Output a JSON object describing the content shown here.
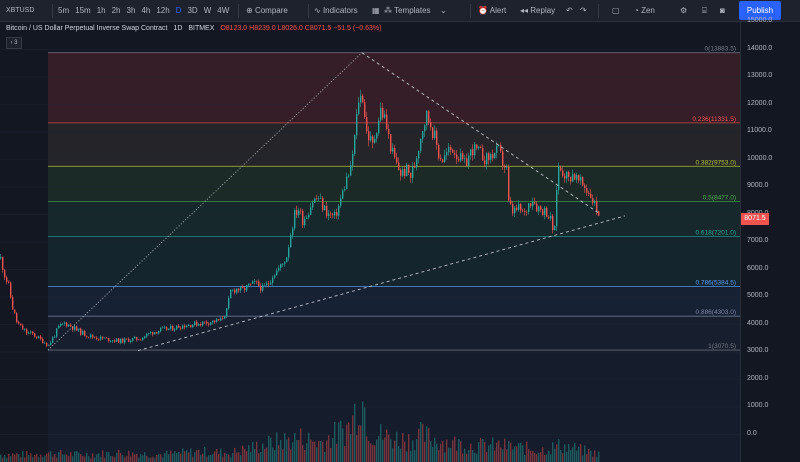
{
  "toolbar": {
    "symbol": "XBTUSD",
    "intervals": [
      "5m",
      "15m",
      "1h",
      "2h",
      "3h",
      "4h",
      "12h",
      "D",
      "3D",
      "W",
      "4W"
    ],
    "active_interval": "D",
    "compare_label": "Compare",
    "indicators_label": "Indicators",
    "templates_label": "Templates",
    "alert_label": "Alert",
    "replay_label": "Replay",
    "zen_label": "Zen",
    "publish_label": "Publish",
    "icons": [
      "add-icon",
      "indicators-icon",
      "layout-icon",
      "templates-icon",
      "alert-icon",
      "replay-icon",
      "undo-icon",
      "redo-icon",
      "fullscreen-icon",
      "settings-icon",
      "screenshot-icon"
    ]
  },
  "legend": {
    "title": "Bitcoin / US Dollar Perpetual Inverse Swap Contract",
    "interval": "1D",
    "exchange": "BITMEX",
    "ohlc": "O8123.0  H8239.0  L8026.0  C8071.5  −51.5 (−0.63%)",
    "collapse": "3"
  },
  "colors": {
    "background": "#131722",
    "candle_up": "#26a69a",
    "candle_down": "#ef5350",
    "accent": "#2962ff"
  },
  "chart_data": {
    "type": "candlestick",
    "symbol": "XBTUSD",
    "interval": "1D",
    "last_price": "8071.5",
    "ylim": [
      -1000,
      15000
    ],
    "y_ticks": [
      15000,
      14000,
      13000,
      12000,
      11000,
      10000,
      9000,
      8000,
      7000,
      6000,
      5000,
      4000,
      3000,
      2000,
      1000,
      0
    ],
    "y_tick_labels": [
      "15000.0",
      "14000.0",
      "13000.0",
      "12000.0",
      "11000.0",
      "10000.0",
      "9000.0",
      "8000.0",
      "7000.0",
      "6000.0",
      "5000.0",
      "4000.0",
      "3000.0",
      "2000.0",
      "1000.0",
      "0.0"
    ],
    "price_path": [
      [
        0,
        6400
      ],
      [
        4,
        5800
      ],
      [
        8,
        5400
      ],
      [
        12,
        4600
      ],
      [
        16,
        4100
      ],
      [
        20,
        3900
      ],
      [
        26,
        3700
      ],
      [
        32,
        3650
      ],
      [
        38,
        3500
      ],
      [
        44,
        3350
      ],
      [
        48,
        3250
      ],
      [
        52,
        3500
      ],
      [
        58,
        3900
      ],
      [
        64,
        4050
      ],
      [
        70,
        3950
      ],
      [
        76,
        3800
      ],
      [
        84,
        3650
      ],
      [
        92,
        3550
      ],
      [
        100,
        3500
      ],
      [
        110,
        3450
      ],
      [
        120,
        3400
      ],
      [
        130,
        3450
      ],
      [
        140,
        3500
      ],
      [
        150,
        3700
      ],
      [
        160,
        3800
      ],
      [
        170,
        3850
      ],
      [
        180,
        3950
      ],
      [
        190,
        4000
      ],
      [
        200,
        4050
      ],
      [
        210,
        4100
      ],
      [
        220,
        4150
      ],
      [
        226,
        4500
      ],
      [
        230,
        5200
      ],
      [
        236,
        5300
      ],
      [
        242,
        5250
      ],
      [
        248,
        5400
      ],
      [
        255,
        5500
      ],
      [
        262,
        5300
      ],
      [
        268,
        5500
      ],
      [
        272,
        5800
      ],
      [
        276,
        5950
      ],
      [
        282,
        6200
      ],
      [
        286,
        6500
      ],
      [
        290,
        7300
      ],
      [
        294,
        8000
      ],
      [
        298,
        8200
      ],
      [
        302,
        7800
      ],
      [
        306,
        8000
      ],
      [
        312,
        8500
      ],
      [
        318,
        8600
      ],
      [
        322,
        8300
      ],
      [
        328,
        8000
      ],
      [
        334,
        7900
      ],
      [
        338,
        8300
      ],
      [
        342,
        8800
      ],
      [
        346,
        9300
      ],
      [
        350,
        9600
      ],
      [
        354,
        10800
      ],
      [
        358,
        12200
      ],
      [
        362,
        12300
      ],
      [
        366,
        11000
      ],
      [
        372,
        10500
      ],
      [
        376,
        11200
      ],
      [
        380,
        11800
      ],
      [
        384,
        11500
      ],
      [
        388,
        10800
      ],
      [
        392,
        10200
      ],
      [
        396,
        9800
      ],
      [
        400,
        9500
      ],
      [
        406,
        9600
      ],
      [
        410,
        9400
      ],
      [
        414,
        9800
      ],
      [
        418,
        10500
      ],
      [
        422,
        11200
      ],
      [
        426,
        11600
      ],
      [
        430,
        11300
      ],
      [
        434,
        10800
      ],
      [
        438,
        10200
      ],
      [
        442,
        10000
      ],
      [
        448,
        10300
      ],
      [
        452,
        10400
      ],
      [
        456,
        10200
      ],
      [
        460,
        10000
      ],
      [
        464,
        9800
      ],
      [
        468,
        10100
      ],
      [
        472,
        10400
      ],
      [
        476,
        10300
      ],
      [
        480,
        10200
      ],
      [
        486,
        10000
      ],
      [
        492,
        10200
      ],
      [
        498,
        10300
      ],
      [
        502,
        9900
      ],
      [
        506,
        9600
      ],
      [
        508,
        8400
      ],
      [
        512,
        8100
      ],
      [
        518,
        8200
      ],
      [
        524,
        8000
      ],
      [
        528,
        8400
      ],
      [
        532,
        8600
      ],
      [
        536,
        8300
      ],
      [
        540,
        8200
      ],
      [
        546,
        8100
      ],
      [
        550,
        7800
      ],
      [
        552,
        7500
      ],
      [
        554,
        7400
      ],
      [
        556,
        9000
      ],
      [
        558,
        9700
      ],
      [
        562,
        9600
      ],
      [
        568,
        9300
      ],
      [
        572,
        9500
      ],
      [
        578,
        9200
      ],
      [
        584,
        9000
      ],
      [
        590,
        8700
      ],
      [
        596,
        8200
      ],
      [
        598,
        8071.5
      ]
    ],
    "fib_levels": [
      {
        "label": "0(13883.5)",
        "price": 13883.5,
        "color": "#787b86"
      },
      {
        "label": "0.236(11331.5)",
        "price": 11331.5,
        "color": "#ef5350"
      },
      {
        "label": "0.382(9753.0)",
        "price": 9753.0,
        "color": "#b5c934"
      },
      {
        "label": "0.5(8477.0)",
        "price": 8477.0,
        "color": "#4caf50"
      },
      {
        "label": "0.618(7201.0)",
        "price": 7201.0,
        "color": "#26a69a"
      },
      {
        "label": "0.786(5384.5)",
        "price": 5384.5,
        "color": "#5b9cf6"
      },
      {
        "label": "0.886(4303.0)",
        "price": 4303.0,
        "color": "#7e8aa8"
      },
      {
        "label": "1(3070.5)",
        "price": 3070.5,
        "color": "#787b86"
      }
    ],
    "fib_zones": [
      "#3b1f29",
      "#28262a",
      "#1d2c28",
      "#172a2c",
      "#162730",
      "#172236",
      "#182030"
    ],
    "trend_lines": [
      {
        "from": [
          138,
          3050
        ],
        "to": [
          625,
          7950
        ],
        "dash": "3,3"
      },
      {
        "from": [
          362,
          13883.5
        ],
        "to": [
          598,
          8071.5
        ],
        "dash": "3,3"
      },
      {
        "from": [
          48,
          3070.5
        ],
        "to": [
          362,
          13883.5
        ],
        "dash": "1,2"
      }
    ],
    "volume_series": [
      [
        40,
        30
      ],
      [
        80,
        25
      ],
      [
        120,
        30
      ],
      [
        160,
        25
      ],
      [
        200,
        35
      ],
      [
        230,
        30
      ],
      [
        260,
        55
      ],
      [
        280,
        70
      ],
      [
        300,
        80
      ],
      [
        320,
        65
      ],
      [
        350,
        120
      ],
      [
        360,
        230
      ],
      [
        370,
        100
      ],
      [
        390,
        80
      ],
      [
        410,
        75
      ],
      [
        420,
        90
      ],
      [
        440,
        70
      ],
      [
        470,
        55
      ],
      [
        500,
        55
      ],
      [
        540,
        40
      ],
      [
        560,
        55
      ],
      [
        580,
        40
      ],
      [
        600,
        25
      ]
    ]
  }
}
